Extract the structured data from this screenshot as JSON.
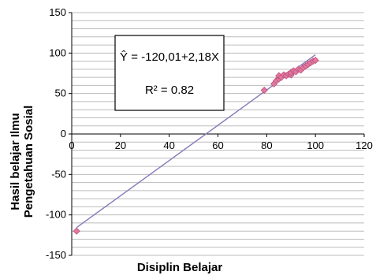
{
  "chart_data": {
    "type": "scatter",
    "xlabel": "Disiplin Belajar",
    "ylabel_line1": "Hasil belajar Ilmu",
    "ylabel_line2": "Pengetahuan Sosial",
    "xlim": [
      0,
      120
    ],
    "ylim": [
      -150,
      150
    ],
    "x_ticks": [
      0,
      20,
      40,
      60,
      80,
      100,
      120
    ],
    "y_ticks": [
      150,
      100,
      50,
      0,
      -50,
      -100,
      -150
    ],
    "grid": true,
    "trendline": {
      "intercept": -120.01,
      "slope": 2.18,
      "x_range": [
        2,
        100
      ],
      "equation": "Ŷ = -120,01+2,18X",
      "r_squared": "R² = 0.82"
    },
    "points": [
      {
        "x": 2,
        "y": -120
      },
      {
        "x": 79,
        "y": 54
      },
      {
        "x": 83,
        "y": 62
      },
      {
        "x": 84,
        "y": 66
      },
      {
        "x": 85,
        "y": 68
      },
      {
        "x": 85,
        "y": 72
      },
      {
        "x": 86,
        "y": 70
      },
      {
        "x": 87,
        "y": 73
      },
      {
        "x": 88,
        "y": 72
      },
      {
        "x": 89,
        "y": 74
      },
      {
        "x": 90,
        "y": 73
      },
      {
        "x": 90,
        "y": 76
      },
      {
        "x": 91,
        "y": 78
      },
      {
        "x": 92,
        "y": 77
      },
      {
        "x": 93,
        "y": 80
      },
      {
        "x": 94,
        "y": 79
      },
      {
        "x": 95,
        "y": 82
      },
      {
        "x": 96,
        "y": 84
      },
      {
        "x": 97,
        "y": 86
      },
      {
        "x": 98,
        "y": 88
      },
      {
        "x": 99,
        "y": 90
      },
      {
        "x": 100,
        "y": 91
      }
    ],
    "colors": {
      "marker_fill": "#e07aa0",
      "marker_stroke": "#c0507a",
      "trendline": "#8878b8",
      "grid": "#bcbcbc",
      "axis": "#000000"
    }
  }
}
